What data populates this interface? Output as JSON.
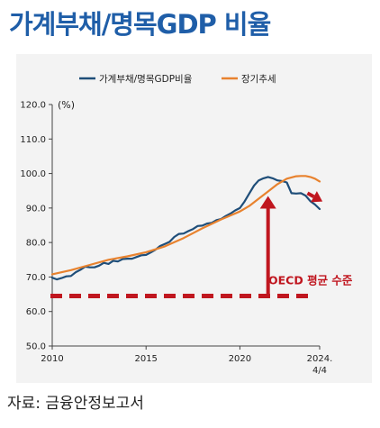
{
  "title": "가계부채/명목GDP 비율",
  "source": "자료: 금융안정보고서",
  "chart_data": {
    "type": "line",
    "unit": "(%)",
    "ylim": [
      50,
      120
    ],
    "yticks": [
      50,
      60,
      70,
      80,
      90,
      100,
      110,
      120
    ],
    "ytick_labels": [
      "50.0",
      "60.0",
      "70.0",
      "80.0",
      "90.0",
      "100.0",
      "110.0",
      "120.0"
    ],
    "xlim": [
      2010,
      2024.25
    ],
    "xticks": [
      {
        "value": 2010,
        "label": "2010",
        "sub": ""
      },
      {
        "value": 2015,
        "label": "2015",
        "sub": ""
      },
      {
        "value": 2020,
        "label": "2020",
        "sub": ""
      },
      {
        "value": 2024.25,
        "label": "2024.",
        "sub": "4/4"
      }
    ],
    "grid": false,
    "legend_position": "top",
    "series": [
      {
        "name": "가계부채/명목GDP비율",
        "color": "#1f4e79",
        "x": [
          2010,
          2010.25,
          2010.5,
          2010.75,
          2011,
          2011.25,
          2011.5,
          2011.75,
          2012,
          2012.25,
          2012.5,
          2012.75,
          2013,
          2013.25,
          2013.5,
          2013.75,
          2014,
          2014.25,
          2014.5,
          2014.75,
          2015,
          2015.25,
          2015.5,
          2015.75,
          2016,
          2016.25,
          2016.5,
          2016.75,
          2017,
          2017.25,
          2017.5,
          2017.75,
          2018,
          2018.25,
          2018.5,
          2018.75,
          2019,
          2019.25,
          2019.5,
          2019.75,
          2020,
          2020.25,
          2020.5,
          2020.75,
          2021,
          2021.25,
          2021.5,
          2021.75,
          2022,
          2022.25,
          2022.5,
          2022.75,
          2023,
          2023.25,
          2023.5,
          2023.75,
          2024,
          2024.25
        ],
        "values": [
          69.8,
          69.3,
          69.7,
          70.2,
          70.3,
          71.4,
          72.1,
          73.0,
          72.8,
          72.8,
          73.3,
          74.1,
          73.8,
          74.7,
          74.5,
          75.2,
          75.3,
          75.3,
          75.8,
          76.3,
          76.4,
          77.1,
          77.9,
          79.0,
          79.6,
          80.2,
          81.6,
          82.5,
          82.6,
          83.3,
          83.9,
          84.8,
          84.9,
          85.5,
          85.7,
          86.5,
          86.8,
          87.7,
          88.4,
          89.3,
          90.0,
          91.9,
          94.2,
          96.5,
          98.0,
          98.6,
          99.0,
          98.6,
          98.0,
          97.8,
          97.4,
          94.3,
          94.2,
          94.3,
          93.6,
          92.0,
          91.0,
          89.7
        ]
      },
      {
        "name": "장기추세",
        "color": "#e8822e",
        "x": [
          2010,
          2011,
          2012,
          2013,
          2014,
          2015,
          2016,
          2017,
          2018,
          2019,
          2020,
          2020.5,
          2021,
          2021.5,
          2022,
          2022.5,
          2023,
          2023.25,
          2023.5,
          2023.75,
          2024,
          2024.25
        ],
        "values": [
          70.8,
          72.0,
          73.5,
          75.0,
          76.0,
          77.2,
          78.9,
          81.3,
          84.1,
          86.7,
          89.0,
          90.6,
          92.7,
          94.8,
          96.9,
          98.5,
          99.2,
          99.3,
          99.3,
          99.0,
          98.5,
          97.7
        ]
      }
    ],
    "reference_line": {
      "label": "OECD 평균 수준",
      "value": 64.5,
      "color": "#c0161f"
    },
    "annotations": [
      {
        "type": "arrow",
        "direction": "up",
        "color": "#c0161f",
        "x": 2021.5,
        "from": 64.5,
        "to": 93.5
      },
      {
        "type": "arrow",
        "direction": "down-right",
        "color": "#c0161f",
        "from": [
          2023.6,
          94.3
        ],
        "to": [
          2024.4,
          91.9
        ]
      }
    ]
  }
}
